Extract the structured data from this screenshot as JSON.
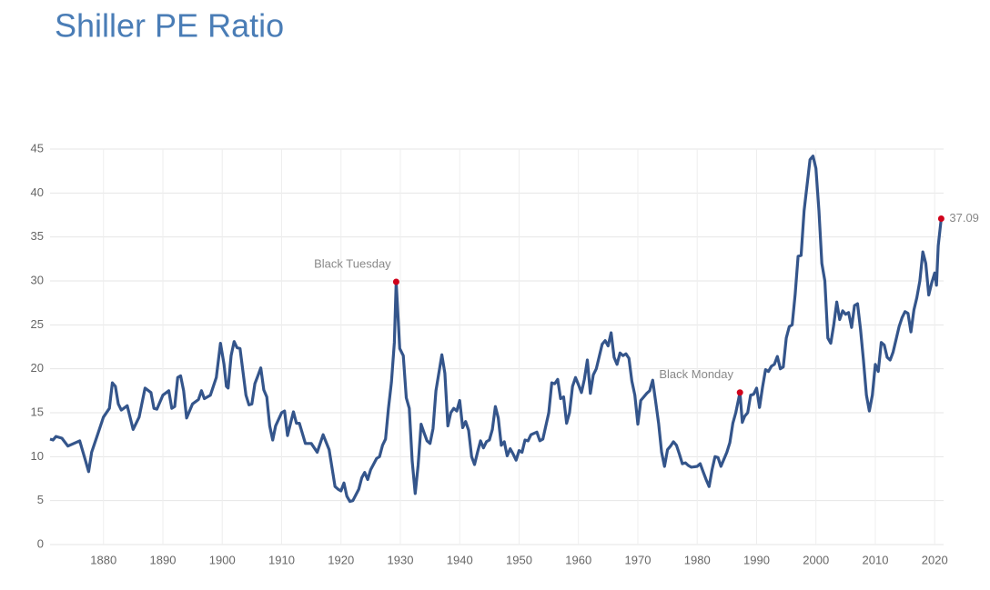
{
  "chart_data": {
    "type": "line",
    "title": "Shiller PE Ratio",
    "x": [
      1871,
      1871.5,
      1872,
      1873,
      1874,
      1875,
      1876,
      1877,
      1877.5,
      1878,
      1879,
      1880,
      1881,
      1881.5,
      1882,
      1882.5,
      1883,
      1884,
      1885,
      1886,
      1887,
      1888,
      1888.5,
      1889,
      1890,
      1891,
      1891.5,
      1892,
      1892.5,
      1893,
      1893.5,
      1894,
      1895,
      1896,
      1896.5,
      1897,
      1898,
      1899,
      1899.7,
      1900.3,
      1900.7,
      1901,
      1901.5,
      1902,
      1902.5,
      1903,
      1904,
      1904.5,
      1905,
      1905.5,
      1906,
      1906.5,
      1907,
      1907.5,
      1908,
      1908.5,
      1909,
      1910,
      1910.5,
      1911,
      1911.5,
      1912,
      1912.5,
      1913,
      1914,
      1915,
      1916,
      1917,
      1918,
      1919,
      1919.5,
      1920,
      1920.5,
      1921,
      1921.5,
      1922,
      1923,
      1923.5,
      1924,
      1924.5,
      1925,
      1926,
      1926.5,
      1927,
      1927.5,
      1928,
      1928.5,
      1929,
      1929.3,
      1929.9,
      1930.5,
      1931,
      1931.5,
      1932,
      1932.5,
      1933,
      1933.5,
      1934,
      1934.5,
      1935,
      1935.5,
      1936,
      1937,
      1937.5,
      1938,
      1938.5,
      1939,
      1939.5,
      1940,
      1940.5,
      1941,
      1941.5,
      1942,
      1942.5,
      1943,
      1943.5,
      1944,
      1944.5,
      1945,
      1945.5,
      1946,
      1946.5,
      1947,
      1947.5,
      1948,
      1948.5,
      1949,
      1949.5,
      1950,
      1950.5,
      1951,
      1951.5,
      1952,
      1953,
      1953.5,
      1954,
      1955,
      1955.5,
      1956,
      1956.5,
      1957,
      1957.5,
      1958,
      1958.5,
      1959,
      1959.5,
      1960,
      1960.5,
      1961,
      1961.5,
      1962,
      1962.5,
      1963,
      1964,
      1964.5,
      1965,
      1965.5,
      1966,
      1966.5,
      1967,
      1967.5,
      1968,
      1968.5,
      1969,
      1969.5,
      1970,
      1970.5,
      1971,
      1971.5,
      1972,
      1972.5,
      1973,
      1973.5,
      1974,
      1974.5,
      1975,
      1975.5,
      1976,
      1976.5,
      1977,
      1977.5,
      1978,
      1978.5,
      1979,
      1980,
      1980.5,
      1981,
      1981.5,
      1982,
      1982.5,
      1983,
      1983.5,
      1984,
      1985,
      1985.5,
      1986,
      1986.5,
      1987.2,
      1987.6,
      1988,
      1988.5,
      1989,
      1989.5,
      1990,
      1990.5,
      1991,
      1991.5,
      1992,
      1992.5,
      1993,
      1993.5,
      1994,
      1994.5,
      1995,
      1995.5,
      1996,
      1996.5,
      1997,
      1997.5,
      1998,
      1999,
      1999.5,
      2000,
      2000.5,
      2001,
      2001.5,
      2002,
      2002.5,
      2003,
      2003.5,
      2004,
      2004.5,
      2005,
      2005.5,
      2006,
      2006.5,
      2007,
      2007.5,
      2008,
      2008.5,
      2009,
      2009.5,
      2010,
      2010.5,
      2011,
      2011.5,
      2012,
      2012.5,
      2013,
      2014,
      2014.5,
      2015,
      2015.5,
      2016,
      2016.5,
      2017,
      2017.5,
      2018,
      2018.5,
      2019,
      2019.5,
      2020,
      2020.3,
      2020.6,
      2021.1
    ],
    "values": [
      12.0,
      11.9,
      12.3,
      12.1,
      11.2,
      11.5,
      11.8,
      9.5,
      8.3,
      10.5,
      12.5,
      14.5,
      15.5,
      18.4,
      18.0,
      16,
      15.3,
      15.8,
      13.1,
      14.5,
      17.8,
      17.3,
      15.5,
      15.4,
      17,
      17.5,
      15.5,
      15.7,
      19,
      19.2,
      17.5,
      14.4,
      16,
      16.5,
      17.5,
      16.6,
      17,
      19,
      22.9,
      20.5,
      18,
      17.8,
      21.5,
      23.1,
      22.4,
      22.3,
      17,
      15.9,
      16,
      18.3,
      19.2,
      20.1,
      17.6,
      16.8,
      13.5,
      11.9,
      13.5,
      15,
      15.2,
      12.4,
      13.8,
      15.1,
      13.8,
      13.8,
      11.5,
      11.5,
      10.5,
      12.5,
      10.8,
      6.6,
      6.3,
      6.1,
      7,
      5.5,
      4.9,
      5,
      6.3,
      7.6,
      8.2,
      7.4,
      8.5,
      9.8,
      10,
      11.3,
      12,
      15.5,
      18.5,
      23,
      29.9,
      22.3,
      21.5,
      16.7,
      15.5,
      9.5,
      5.8,
      9,
      13.7,
      12.7,
      11.8,
      11.5,
      13.2,
      17.5,
      21.6,
      19.5,
      13.5,
      15,
      15.5,
      15.2,
      16.4,
      13.3,
      14,
      13,
      10,
      9.1,
      10.5,
      11.8,
      11,
      11.7,
      11.9,
      13.1,
      15.7,
      14.4,
      11.3,
      11.7,
      10.1,
      10.9,
      10.3,
      9.6,
      10.7,
      10.5,
      11.9,
      11.8,
      12.5,
      12.8,
      11.8,
      12,
      15,
      18.4,
      18.3,
      18.8,
      16.6,
      16.8,
      13.8,
      15,
      18,
      19,
      18.2,
      17.3,
      18.8,
      21,
      17.2,
      19.3,
      20,
      22.8,
      23.2,
      22.6,
      24.1,
      21.3,
      20.5,
      21.8,
      21.5,
      21.7,
      21.2,
      18.6,
      17,
      13.7,
      16.4,
      16.8,
      17.2,
      17.5,
      18.7,
      16.3,
      13.8,
      10.5,
      8.9,
      10.8,
      11.2,
      11.7,
      11.3,
      10.3,
      9.2,
      9.3,
      9,
      8.8,
      8.9,
      9.2,
      8.3,
      7.4,
      6.6,
      8.5,
      10,
      9.9,
      8.9,
      10.5,
      11.6,
      13.8,
      15,
      17.3,
      13.9,
      14.6,
      15,
      17,
      17.1,
      17.8,
      15.6,
      17.9,
      19.9,
      19.7,
      20.3,
      20.5,
      21.4,
      20,
      20.2,
      23.5,
      24.8,
      25,
      28.5,
      32.8,
      32.9,
      38,
      43.8,
      44.2,
      42.8,
      38,
      32,
      30,
      23.5,
      22.9,
      25,
      27.6,
      25.6,
      26.6,
      26.2,
      26.4,
      24.7,
      27.2,
      27.4,
      24.5,
      21,
      17,
      15.2,
      17,
      20.5,
      19.7,
      23,
      22.7,
      21.3,
      21,
      21.9,
      24.8,
      25.8,
      26.5,
      26.3,
      24.2,
      26.7,
      28.1,
      30,
      33.3,
      32,
      28.4,
      29.8,
      30.9,
      29.5,
      34,
      37.09
    ],
    "color": "#34558b",
    "marker_color": "#d0021b",
    "xlim": [
      1871,
      2021.5
    ],
    "xticks": [
      1880,
      1890,
      1900,
      1910,
      1920,
      1930,
      1940,
      1950,
      1960,
      1970,
      1980,
      1990,
      2000,
      2010,
      2020
    ],
    "ylim": [
      0,
      45
    ],
    "yticks": [
      0,
      5,
      10,
      15,
      20,
      25,
      30,
      35,
      40,
      45
    ],
    "grid": true,
    "annotations": [
      {
        "text": "Black Tuesday",
        "x": 1929.3,
        "y": 29.9
      },
      {
        "text": "Black Monday",
        "x": 1987.2,
        "y": 17.3
      }
    ]
  }
}
